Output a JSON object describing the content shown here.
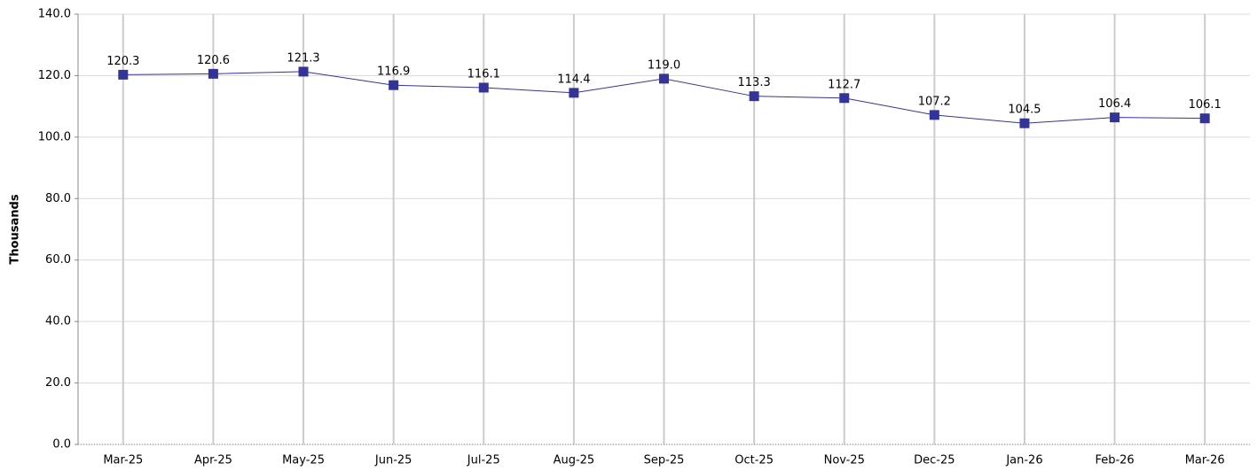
{
  "chart_data": {
    "type": "line",
    "y_label": "Thousands",
    "categories": [
      "Mar-25",
      "Apr-25",
      "May-25",
      "Jun-25",
      "Jul-25",
      "Aug-25",
      "Sep-25",
      "Oct-25",
      "Nov-25",
      "Dec-25",
      "Jan-26",
      "Feb-26",
      "Mar-26"
    ],
    "series": [
      {
        "color": "#333399",
        "values": [
          120.3,
          120.6,
          121.3,
          116.9,
          116.1,
          114.4,
          119.0,
          113.3,
          112.7,
          107.2,
          104.5,
          106.4,
          106.1
        ],
        "value_labels": [
          "120.3",
          "120.6",
          "121.3",
          "116.9",
          "116.1",
          "114.4",
          "119.0",
          "113.3",
          "112.7",
          "107.2",
          "104.5",
          "106.4",
          "106.1"
        ]
      }
    ],
    "ylim": [
      0,
      140
    ],
    "yticks": [
      {
        "value": 0,
        "label": "0.0"
      },
      {
        "value": 20,
        "label": "20.0"
      },
      {
        "value": 40,
        "label": "40.0"
      },
      {
        "value": 60,
        "label": "60.0"
      },
      {
        "value": 80,
        "label": "80.0"
      },
      {
        "value": 100,
        "label": "100.0"
      },
      {
        "value": 120,
        "label": "120.0"
      },
      {
        "value": 140,
        "label": "140.0"
      }
    ],
    "grid": true
  }
}
